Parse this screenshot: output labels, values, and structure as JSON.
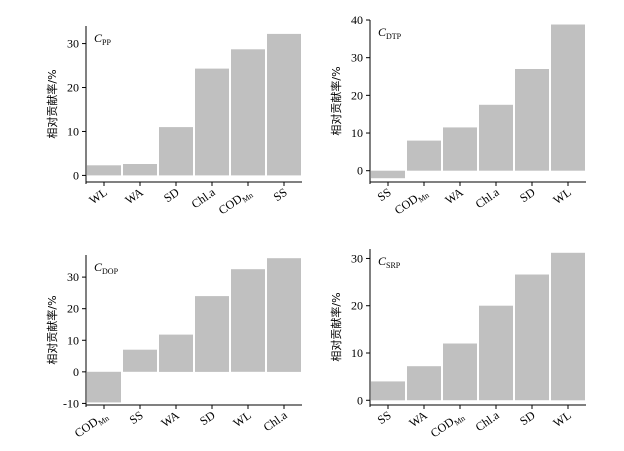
{
  "colors": {
    "bar": "#c0c0c0",
    "axis": "#000000",
    "background": "#ffffff"
  },
  "chart_data": [
    {
      "type": "bar",
      "title_main": "C",
      "title_sub": "PP",
      "ylabel": "相对贡献率/%",
      "categories": [
        "WL",
        "WA",
        "SD",
        "Chl.a",
        "COD",
        "SS"
      ],
      "category_subs": [
        "",
        "",
        "",
        "",
        "Mn",
        ""
      ],
      "values": [
        2.3,
        2.6,
        11.0,
        24.3,
        28.7,
        32.2
      ],
      "ylim": [
        -1.5,
        34
      ],
      "yticks": [
        0,
        10,
        20,
        30
      ],
      "ytick_labels": [
        "0",
        "10",
        "20",
        "30"
      ],
      "grid": false
    },
    {
      "type": "bar",
      "title_main": "C",
      "title_sub": "DTP",
      "ylabel": "相对贡献率/%",
      "categories": [
        "SS",
        "COD",
        "WA",
        "Chl.a",
        "SD",
        "WL"
      ],
      "category_subs": [
        "",
        "Mn",
        "",
        "",
        "",
        ""
      ],
      "values": [
        -2.0,
        8.0,
        11.5,
        17.5,
        27.0,
        38.8
      ],
      "ylim": [
        -3,
        40
      ],
      "yticks": [
        0,
        10,
        20,
        30,
        40
      ],
      "ytick_labels": [
        "0",
        "10",
        "20",
        "30",
        "40"
      ],
      "grid": false
    },
    {
      "type": "bar",
      "title_main": "C",
      "title_sub": "DOP",
      "ylabel": "相对贡献率/%",
      "categories": [
        "COD",
        "SS",
        "WA",
        "SD",
        "WL",
        "Chl.a"
      ],
      "category_subs": [
        "Mn",
        "",
        "",
        "",
        "",
        ""
      ],
      "values": [
        -9.7,
        7.0,
        11.8,
        24.0,
        32.5,
        36.0
      ],
      "ylim": [
        -10.5,
        37
      ],
      "yticks": [
        -10,
        0,
        10,
        20,
        30
      ],
      "ytick_labels": [
        "-10",
        "0",
        "10",
        "20",
        "30"
      ],
      "grid": false
    },
    {
      "type": "bar",
      "title_main": "C",
      "title_sub": "SRP",
      "ylabel": "相对贡献率/%",
      "categories": [
        "SS",
        "WA",
        "COD",
        "Chl.a",
        "SD",
        "WL"
      ],
      "category_subs": [
        "",
        "",
        "Mn",
        "",
        "",
        ""
      ],
      "values": [
        4.0,
        7.2,
        12.0,
        20.0,
        26.6,
        31.2
      ],
      "ylim": [
        -1,
        32
      ],
      "yticks": [
        0,
        10,
        20,
        30
      ],
      "ytick_labels": [
        "0",
        "10",
        "20",
        "30"
      ],
      "grid": false
    }
  ]
}
